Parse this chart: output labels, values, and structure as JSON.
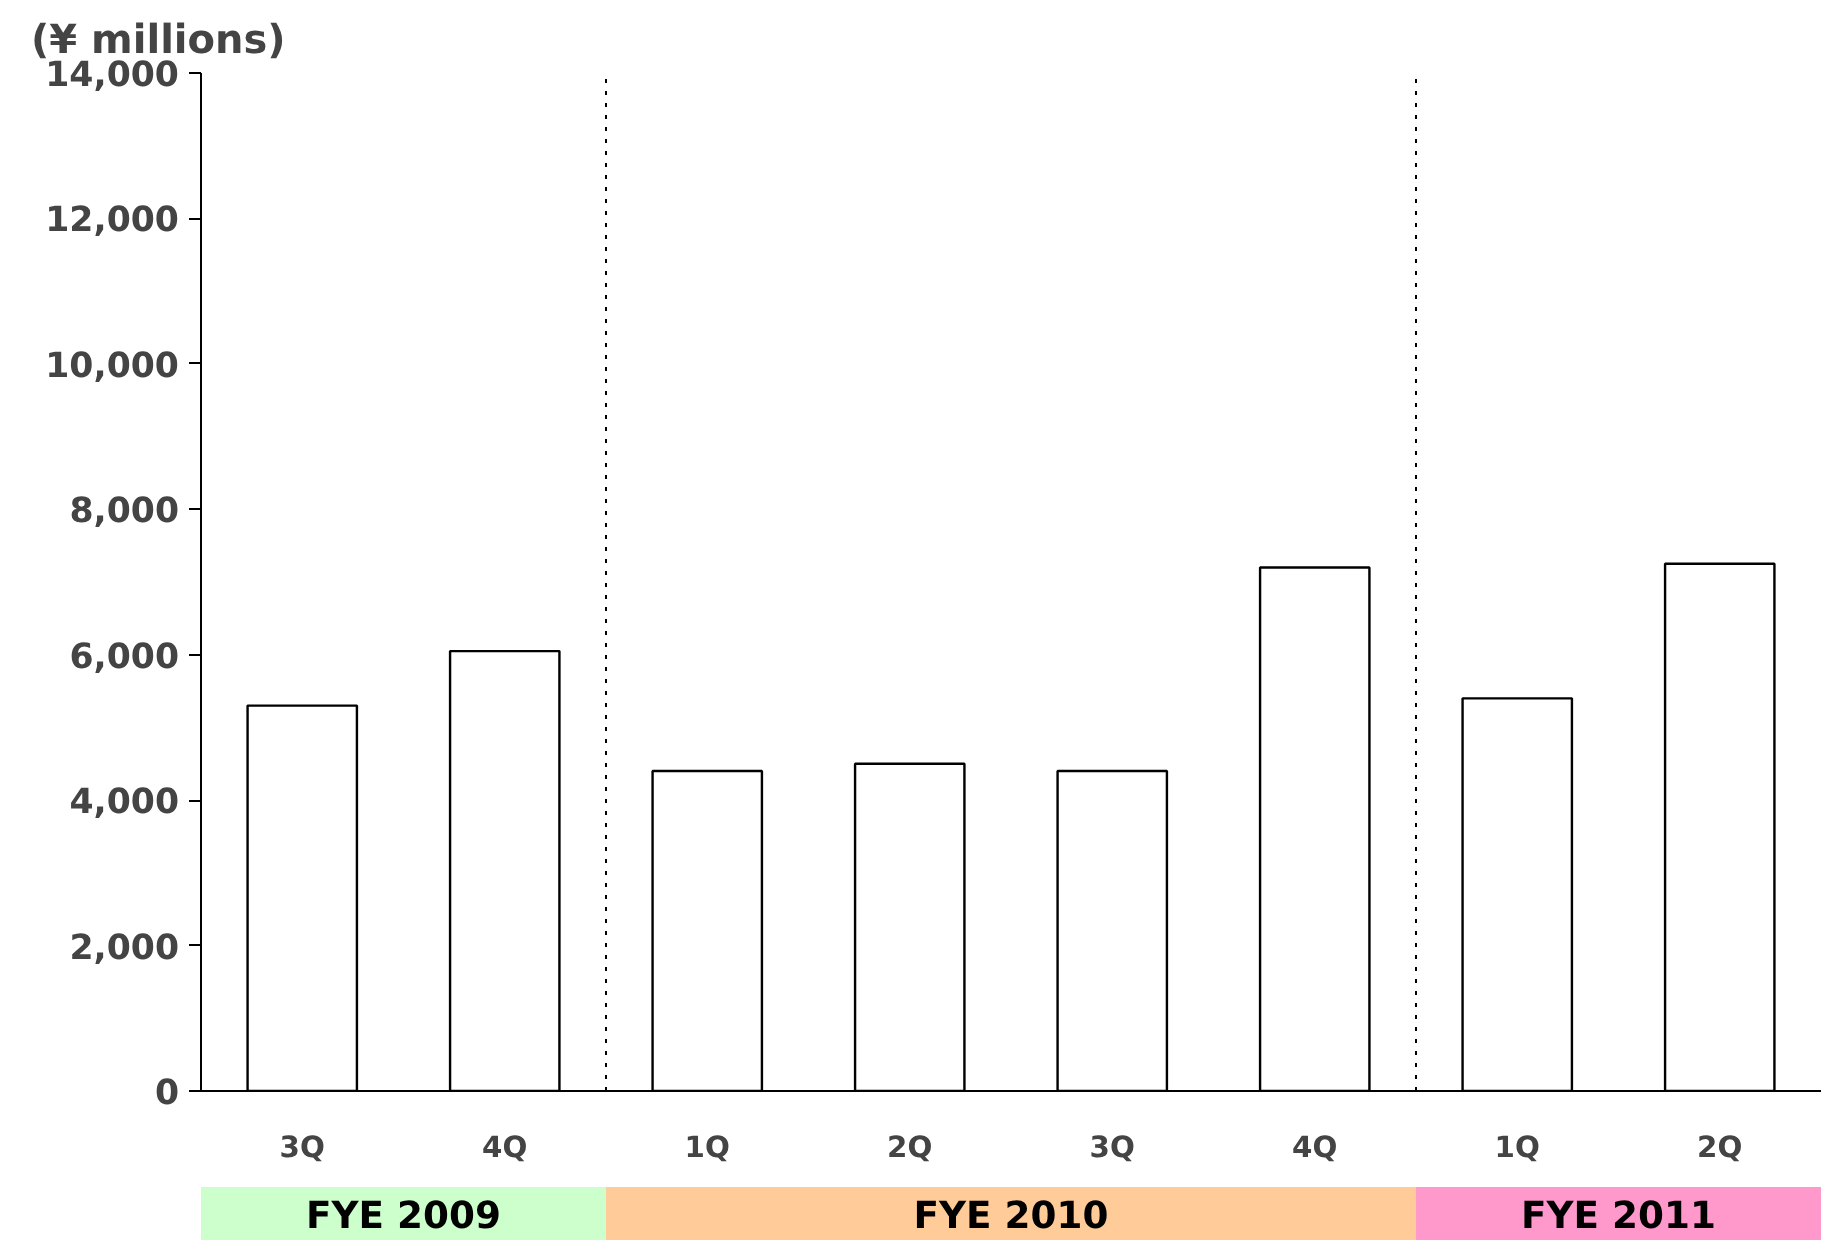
{
  "chart_data": {
    "type": "bar",
    "ylabel": "(¥ millions)",
    "categories": [
      "3Q",
      "4Q",
      "1Q",
      "2Q",
      "3Q",
      "4Q",
      "1Q",
      "2Q"
    ],
    "values": [
      5300,
      6050,
      4400,
      4500,
      4400,
      7200,
      5400,
      7250
    ],
    "color": "#ffffff",
    "ylim": [
      0,
      14000
    ],
    "yticks": [
      0,
      {
        "value": 2000,
        "label": "2,000"
      },
      {
        "value": 4000,
        "label": "4,000"
      },
      {
        "value": 6000,
        "label": "6,000"
      },
      {
        "value": 8000,
        "label": "8,000"
      },
      {
        "value": 10000,
        "label": "10,000"
      },
      {
        "value": 12000,
        "label": "12,000"
      },
      {
        "value": 14000,
        "label": "14,000"
      }
    ],
    "grid": false,
    "annotations": [
      "FYE 2009",
      "FYE 2010",
      "FYE 2011"
    ]
  }
}
